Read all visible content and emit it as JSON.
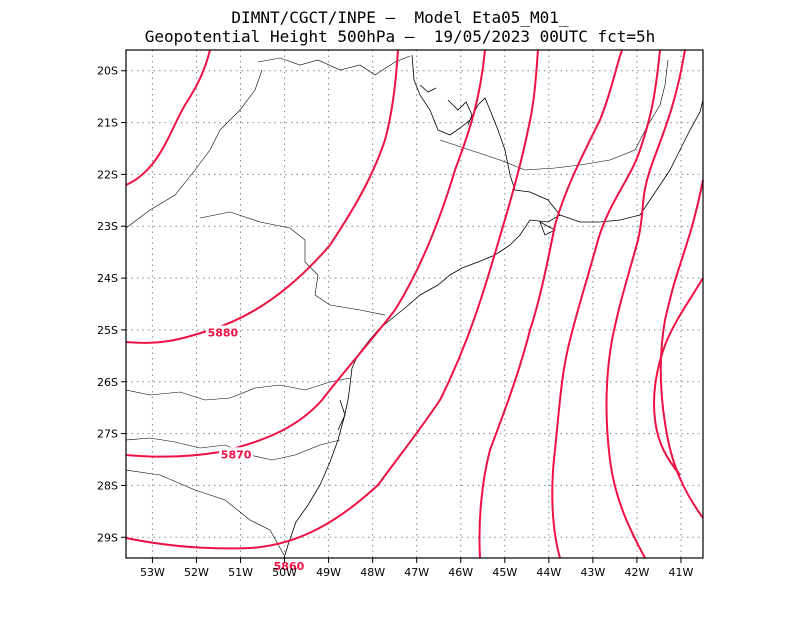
{
  "header": {
    "line1": "DIMNT/CGCT/INPE –  Model Eta05_M01_",
    "line2": "Geopotential Height 500hPa –  19/05/2023 00UTC fct=5h"
  },
  "colors": {
    "contour": "#ee1144",
    "coast": "#000000",
    "grid": "#888888",
    "frame": "#000000"
  },
  "chart_data": {
    "type": "map-contour",
    "variable": "Geopotential Height 500hPa",
    "lon_range": [
      -53.6,
      -40.5
    ],
    "lat_range": [
      -29.4,
      -19.6
    ],
    "x_ticks": [
      "53W",
      "52W",
      "51W",
      "50W",
      "49W",
      "48W",
      "47W",
      "46W",
      "45W",
      "44W",
      "43W",
      "42W",
      "41W"
    ],
    "y_ticks": [
      "20S",
      "21S",
      "22S",
      "23S",
      "24S",
      "25S",
      "26S",
      "27S",
      "28S",
      "29S"
    ],
    "grid": true,
    "contour_labels": [
      {
        "text": "5880",
        "lon": -51.4,
        "lat": -25.05
      },
      {
        "text": "5870",
        "lon": -51.1,
        "lat": -27.4
      },
      {
        "text": "5860",
        "lon": -49.9,
        "lat": -29.55
      }
    ]
  }
}
